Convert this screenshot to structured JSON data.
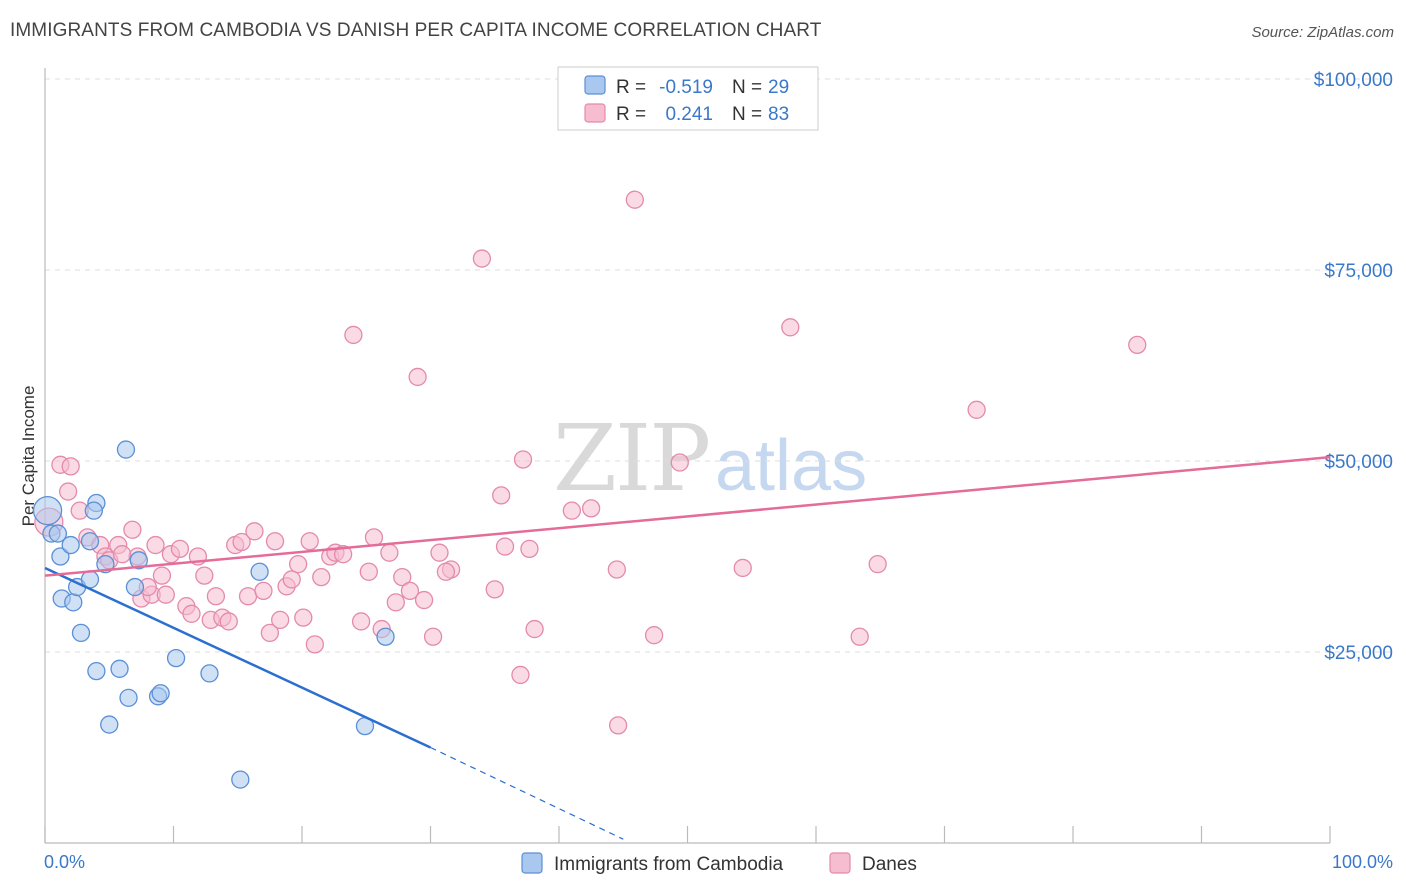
{
  "header": {
    "title": "IMMIGRANTS FROM CAMBODIA VS DANISH PER CAPITA INCOME CORRELATION CHART",
    "source": "Source: ZipAtlas.com"
  },
  "watermark": {
    "part1": "ZIP",
    "part2": "atlas"
  },
  "colors": {
    "series1_fill": "#aac8ef",
    "series1_stroke": "#5b8fd6",
    "series1_line": "#2b6fd0",
    "series2_fill": "#f6bcd0",
    "series2_stroke": "#e48aab",
    "series2_line": "#e56b98",
    "grid": "#dddddd",
    "tick_text": "#3a78c9"
  },
  "legend_top": {
    "rows": [
      {
        "r_label": "R =",
        "r_value": "-0.519",
        "n_label": "N =",
        "n_value": "29"
      },
      {
        "r_label": "R =",
        "r_value": "0.241",
        "n_label": "N =",
        "n_value": "83"
      }
    ]
  },
  "legend_bottom": {
    "items": [
      {
        "label": "Immigrants from Cambodia"
      },
      {
        "label": "Danes"
      }
    ]
  },
  "chart_data": {
    "type": "scatter",
    "title": "IMMIGRANTS FROM CAMBODIA VS DANISH PER CAPITA INCOME CORRELATION CHART",
    "xlabel": "",
    "ylabel": "Per Capita Income",
    "xlim": [
      0,
      100
    ],
    "ylim": [
      0,
      102000
    ],
    "x_tick_labels": {
      "min": "0.0%",
      "max": "100.0%"
    },
    "y_ticks": [
      {
        "value": 25000,
        "label": "$25,000"
      },
      {
        "value": 50000,
        "label": "$50,000"
      },
      {
        "value": 75000,
        "label": "$75,000"
      },
      {
        "value": 100000,
        "label": "$100,000"
      }
    ],
    "series": [
      {
        "name": "Immigrants from Cambodia",
        "R": -0.519,
        "N": 29,
        "trend": {
          "x0": 0,
          "y0": 36000,
          "x1": 30,
          "y1": 12500,
          "dash_to_x": 45,
          "dash_to_y": 500
        },
        "points": [
          [
            0.2,
            43500,
            2
          ],
          [
            0.5,
            40500,
            1
          ],
          [
            1.0,
            40500,
            1
          ],
          [
            1.2,
            37500,
            1
          ],
          [
            2.0,
            39000,
            1
          ],
          [
            1.3,
            32000,
            1
          ],
          [
            2.2,
            31500,
            1
          ],
          [
            2.5,
            33500,
            1
          ],
          [
            3.5,
            34500,
            1
          ],
          [
            2.8,
            27500,
            1
          ],
          [
            4.0,
            44500,
            1
          ],
          [
            3.5,
            39500,
            1
          ],
          [
            4.7,
            36500,
            1
          ],
          [
            6.3,
            51500,
            1
          ],
          [
            7.0,
            33500,
            1
          ],
          [
            4.0,
            22500,
            1
          ],
          [
            5.8,
            22800,
            1
          ],
          [
            5.0,
            15500,
            1
          ],
          [
            6.5,
            19000,
            1
          ],
          [
            8.8,
            19200,
            1
          ],
          [
            9.0,
            19600,
            1
          ],
          [
            10.2,
            24200,
            1
          ],
          [
            12.8,
            22200,
            1
          ],
          [
            16.7,
            35500,
            1
          ],
          [
            26.5,
            27000,
            1
          ],
          [
            24.9,
            15300,
            1
          ],
          [
            15.2,
            8300,
            1
          ],
          [
            3.8,
            43500,
            1
          ],
          [
            7.3,
            37000,
            1
          ]
        ]
      },
      {
        "name": "Danes",
        "R": 0.241,
        "N": 83,
        "trend": {
          "x0": 0,
          "y0": 35000,
          "x1": 100,
          "y1": 50500
        },
        "points": [
          [
            0.3,
            42000,
            2
          ],
          [
            1.2,
            49500,
            1
          ],
          [
            1.8,
            46000,
            1
          ],
          [
            2.7,
            43500,
            1
          ],
          [
            3.3,
            40000,
            1
          ],
          [
            4.3,
            39000,
            1
          ],
          [
            4.7,
            37500,
            1
          ],
          [
            5.0,
            37000,
            1
          ],
          [
            5.7,
            39000,
            1
          ],
          [
            6.8,
            41000,
            1
          ],
          [
            7.2,
            37500,
            1
          ],
          [
            7.5,
            32000,
            1
          ],
          [
            8.3,
            32500,
            1
          ],
          [
            8.6,
            39000,
            1
          ],
          [
            9.1,
            35000,
            1
          ],
          [
            9.4,
            32500,
            1
          ],
          [
            9.8,
            37800,
            1
          ],
          [
            10.5,
            38500,
            1
          ],
          [
            11.0,
            31000,
            1
          ],
          [
            11.4,
            30000,
            1
          ],
          [
            11.9,
            37500,
            1
          ],
          [
            12.4,
            35000,
            1
          ],
          [
            12.9,
            29200,
            1
          ],
          [
            13.3,
            32300,
            1
          ],
          [
            13.8,
            29500,
            1
          ],
          [
            14.3,
            29000,
            1
          ],
          [
            14.8,
            39000,
            1
          ],
          [
            15.3,
            39400,
            1
          ],
          [
            15.8,
            32300,
            1
          ],
          [
            16.3,
            40800,
            1
          ],
          [
            17.0,
            33000,
            1
          ],
          [
            17.5,
            27500,
            1
          ],
          [
            17.9,
            39500,
            1
          ],
          [
            18.3,
            29200,
            1
          ],
          [
            18.8,
            33600,
            1
          ],
          [
            19.2,
            34500,
            1
          ],
          [
            19.7,
            36500,
            1
          ],
          [
            20.1,
            29500,
            1
          ],
          [
            20.6,
            39500,
            1
          ],
          [
            21.0,
            26000,
            1
          ],
          [
            21.5,
            34800,
            1
          ],
          [
            22.2,
            37500,
            1
          ],
          [
            22.6,
            38000,
            1
          ],
          [
            23.2,
            37800,
            1
          ],
          [
            24.0,
            66500,
            1
          ],
          [
            24.6,
            29000,
            1
          ],
          [
            25.2,
            35500,
            1
          ],
          [
            25.6,
            40000,
            1
          ],
          [
            26.2,
            28000,
            1
          ],
          [
            26.8,
            38000,
            1
          ],
          [
            27.3,
            31500,
            1
          ],
          [
            27.8,
            34800,
            1
          ],
          [
            28.4,
            33000,
            1
          ],
          [
            29.0,
            61000,
            1
          ],
          [
            29.5,
            31800,
            1
          ],
          [
            30.2,
            27000,
            1
          ],
          [
            30.7,
            38000,
            1
          ],
          [
            31.6,
            35800,
            1
          ],
          [
            31.2,
            35500,
            1
          ],
          [
            34.0,
            76500,
            1
          ],
          [
            35.0,
            33200,
            1
          ],
          [
            35.5,
            45500,
            1
          ],
          [
            35.8,
            38800,
            1
          ],
          [
            37.2,
            50200,
            1
          ],
          [
            37.7,
            38500,
            1
          ],
          [
            38.1,
            28000,
            1
          ],
          [
            37.0,
            22000,
            1
          ],
          [
            41.0,
            43500,
            1
          ],
          [
            42.5,
            43800,
            1
          ],
          [
            44.5,
            35800,
            1
          ],
          [
            44.6,
            15400,
            1
          ],
          [
            45.9,
            84200,
            1
          ],
          [
            47.4,
            27200,
            1
          ],
          [
            49.4,
            49800,
            1
          ],
          [
            54.3,
            36000,
            1
          ],
          [
            58.0,
            67500,
            1
          ],
          [
            63.4,
            27000,
            1
          ],
          [
            64.8,
            36500,
            1
          ],
          [
            72.5,
            56700,
            1
          ],
          [
            85.0,
            65200,
            1
          ],
          [
            6.0,
            37800,
            1
          ],
          [
            8.0,
            33500,
            1
          ],
          [
            2.0,
            49300,
            1
          ]
        ]
      }
    ]
  }
}
